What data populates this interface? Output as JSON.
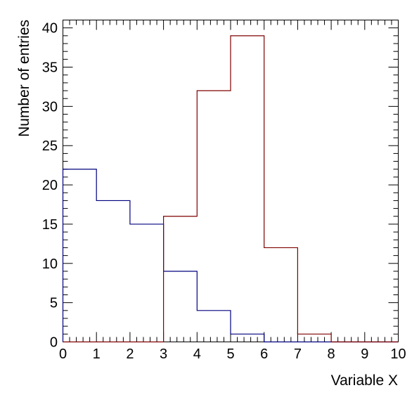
{
  "chart_data": {
    "type": "histogram",
    "xlabel": "Variable X",
    "ylabel": "Number of entries",
    "xlim": [
      0,
      10
    ],
    "ylim": [
      0,
      41
    ],
    "bin_edges": [
      0,
      1,
      2,
      3,
      4,
      5,
      6,
      7,
      8,
      9,
      10
    ],
    "x_ticks": [
      0,
      1,
      2,
      3,
      4,
      5,
      6,
      7,
      8,
      9,
      10
    ],
    "y_ticks": [
      0,
      5,
      10,
      15,
      20,
      25,
      30,
      35,
      40
    ],
    "grid": false,
    "series": [
      {
        "color": "#00007f",
        "values": [
          22,
          18,
          15,
          9,
          4,
          1,
          0,
          0,
          0,
          0
        ]
      },
      {
        "color": "#7f0000",
        "values": [
          0,
          0,
          0,
          16,
          32,
          39,
          12,
          1,
          0,
          0
        ]
      }
    ]
  }
}
